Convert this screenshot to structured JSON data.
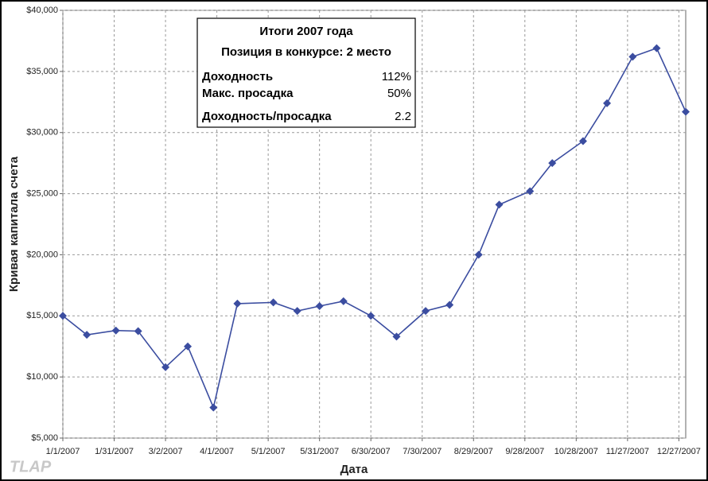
{
  "chart_data": {
    "type": "line",
    "xlabel": "Дата",
    "ylabel": "Кривая капитала счета",
    "x": [
      0,
      14,
      31,
      44,
      60,
      73,
      88,
      102,
      123,
      137,
      150,
      164,
      180,
      195,
      212,
      226,
      243,
      255,
      273,
      286,
      304,
      318,
      333,
      347,
      364
    ],
    "series": [
      {
        "color": "#3b4da0",
        "values": [
          15000,
          13450,
          13800,
          13750,
          10800,
          12500,
          7500,
          16000,
          16100,
          15400,
          15800,
          16200,
          15000,
          13300,
          15400,
          15900,
          20000,
          24100,
          25200,
          27500,
          29300,
          32400,
          36200,
          36900,
          31700
        ]
      }
    ],
    "xlim": [
      0,
      364
    ],
    "xticks": [
      {
        "value": 0,
        "label": "1/1/2007"
      },
      {
        "value": 30,
        "label": "1/31/2007"
      },
      {
        "value": 60,
        "label": "3/2/2007"
      },
      {
        "value": 90,
        "label": "4/1/2007"
      },
      {
        "value": 120,
        "label": "5/1/2007"
      },
      {
        "value": 150,
        "label": "5/31/2007"
      },
      {
        "value": 180,
        "label": "6/30/2007"
      },
      {
        "value": 210,
        "label": "7/30/2007"
      },
      {
        "value": 240,
        "label": "8/29/2007"
      },
      {
        "value": 270,
        "label": "9/28/2007"
      },
      {
        "value": 300,
        "label": "10/28/2007"
      },
      {
        "value": 330,
        "label": "11/27/2007"
      },
      {
        "value": 360,
        "label": "12/27/2007"
      }
    ],
    "ylim": [
      5000,
      40000
    ],
    "yticks": [
      {
        "value": 5000,
        "label": "$5,000"
      },
      {
        "value": 10000,
        "label": "$10,000"
      },
      {
        "value": 15000,
        "label": "$15,000"
      },
      {
        "value": 20000,
        "label": "$20,000"
      },
      {
        "value": 25000,
        "label": "$25,000"
      },
      {
        "value": 30000,
        "label": "$30,000"
      },
      {
        "value": 35000,
        "label": "$35,000"
      },
      {
        "value": 40000,
        "label": "$40,000"
      }
    ],
    "grid": true,
    "annotation": {
      "title": "Итоги 2007 года",
      "subtitle": "Позиция в конкурсе: 2 место",
      "rows": [
        {
          "label": "Доходность",
          "value": "112%"
        },
        {
          "label": "Макс. просадка",
          "value": "50%"
        },
        {
          "label": "Доходность/просадка",
          "value": "2.2"
        }
      ]
    },
    "watermark": "TLAP"
  }
}
